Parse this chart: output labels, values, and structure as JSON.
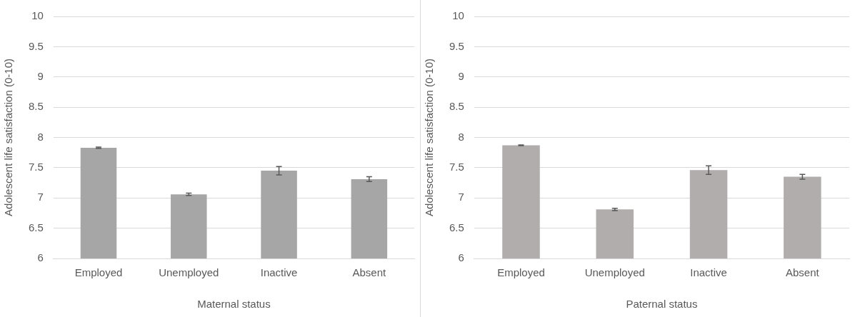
{
  "chart_data": [
    {
      "type": "bar",
      "categories": [
        "Employed",
        "Unemployed",
        "Inactive",
        "Absent"
      ],
      "values": [
        7.83,
        7.06,
        7.45,
        7.31
      ],
      "errors": [
        0.01,
        0.02,
        0.07,
        0.04
      ],
      "color": "#a6a6a6",
      "xlabel": "Maternal status",
      "ylabel": "Adolescent life satisfaction (0-10)",
      "ylim": [
        6,
        10
      ],
      "yticks": [
        6,
        {
          "value": 6.5,
          "label": "6.5"
        },
        7,
        {
          "value": 7.5,
          "label": "7.5"
        },
        8,
        {
          "value": 8.5,
          "label": "8.5"
        },
        9,
        {
          "value": 9.5,
          "label": "9.5"
        },
        10
      ],
      "grid": "y",
      "legend": false
    },
    {
      "type": "bar",
      "categories": [
        "Employed",
        "Unemployed",
        "Inactive",
        "Absent"
      ],
      "values": [
        7.87,
        6.81,
        7.46,
        7.35
      ],
      "errors": [
        0.005,
        0.02,
        0.07,
        0.04
      ],
      "color": "#b1adac",
      "xlabel": "Paternal status",
      "ylabel": "Adolescent life satisfaction (0-10)",
      "ylim": [
        6,
        10
      ],
      "yticks": [
        6,
        {
          "value": 6.5,
          "label": "6.5"
        },
        7,
        {
          "value": 7.5,
          "label": "7.5"
        },
        8,
        {
          "value": 8.5,
          "label": "8.5"
        },
        9,
        {
          "value": 9.5,
          "label": "9.5"
        },
        10
      ],
      "grid": "y",
      "legend": false
    }
  ]
}
